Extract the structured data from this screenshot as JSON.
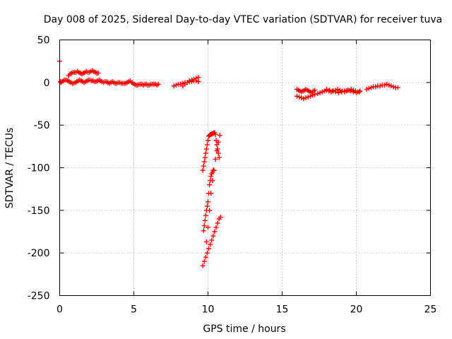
{
  "chart_data": {
    "type": "scatter",
    "title": "Day 008 of 2025, Sidereal Day-to-day VTEC variation (SDTVAR) for receiver tuva",
    "xlabel": "GPS time / hours",
    "ylabel": "SDTVAR / TECUs",
    "xlim": [
      0,
      25
    ],
    "ylim": [
      -250,
      50
    ],
    "xticks": [
      0,
      5,
      10,
      15,
      20,
      25
    ],
    "yticks": [
      50,
      0,
      -50,
      -100,
      -150,
      -200,
      -250
    ],
    "grid": true,
    "marker": "plus",
    "color": "#ff0000",
    "x": [
      0.0,
      0.08,
      0.15,
      0.25,
      0.35,
      0.45,
      0.55,
      0.65,
      0.75,
      0.85,
      0.95,
      1.05,
      1.15,
      1.25,
      1.35,
      1.45,
      1.55,
      1.65,
      1.75,
      1.85,
      1.95,
      2.05,
      2.15,
      2.25,
      2.35,
      2.45,
      2.55,
      2.65,
      2.75,
      2.85,
      2.95,
      3.05,
      3.15,
      3.25,
      3.35,
      3.45,
      3.55,
      3.65,
      3.75,
      3.85,
      3.95,
      4.05,
      4.15,
      4.25,
      4.35,
      4.45,
      4.55,
      4.65,
      4.75,
      4.85,
      4.95,
      5.05,
      5.15,
      5.25,
      5.35,
      5.45,
      5.55,
      5.65,
      5.75,
      5.85,
      5.95,
      6.05,
      6.15,
      6.25,
      6.35,
      6.45,
      6.55,
      6.65,
      0.6,
      0.7,
      0.8,
      0.9,
      1.0,
      1.1,
      1.2,
      1.3,
      1.4,
      1.5,
      1.6,
      1.7,
      1.8,
      1.9,
      2.0,
      2.1,
      2.2,
      2.3,
      2.4,
      2.5,
      2.6,
      0.05,
      7.7,
      7.85,
      8.0,
      8.15,
      8.3,
      8.45,
      8.6,
      8.75,
      8.9,
      9.05,
      9.2,
      9.35,
      8.3,
      8.45,
      8.6,
      8.75,
      8.9,
      9.05,
      9.2,
      9.35,
      9.65,
      9.7,
      9.75,
      9.8,
      9.85,
      9.9,
      9.95,
      10.0,
      10.05,
      10.1,
      10.15,
      10.2,
      10.25,
      10.3,
      10.35,
      10.4,
      10.45,
      10.5,
      10.55,
      10.6,
      10.65,
      10.7,
      10.75,
      9.9,
      10.0,
      10.1,
      10.2,
      10.3,
      10.4,
      10.5,
      10.6,
      10.7,
      10.8,
      9.7,
      9.75,
      9.8,
      9.85,
      9.9,
      9.95,
      10.0,
      10.05,
      10.1,
      10.15,
      10.2,
      10.25,
      10.3,
      10.35,
      10.4,
      9.65,
      9.75,
      9.85,
      9.95,
      10.05,
      10.15,
      10.25,
      10.35,
      10.45,
      10.55,
      10.65,
      10.75,
      10.85,
      16.0,
      16.1,
      16.2,
      16.3,
      16.4,
      16.5,
      16.6,
      16.7,
      16.8,
      16.9,
      17.0,
      17.1,
      17.2,
      16.0,
      16.15,
      16.3,
      16.45,
      16.6,
      16.75,
      16.9,
      17.05,
      17.2,
      17.4,
      17.55,
      17.7,
      17.85,
      18.0,
      18.15,
      18.3,
      18.45,
      18.6,
      18.75,
      18.9,
      19.05,
      19.2,
      19.35,
      19.5,
      19.65,
      19.8,
      19.95,
      20.1,
      20.25,
      18.0,
      18.2,
      18.4,
      18.6,
      18.8,
      19.0,
      19.2,
      19.4,
      19.6,
      19.8,
      20.0,
      20.2,
      20.7,
      20.85,
      21.0,
      21.15,
      21.3,
      21.45,
      21.6,
      21.75,
      21.9,
      22.05,
      22.2,
      22.35,
      22.5,
      22.65,
      22.8
    ],
    "y": [
      25,
      0,
      1,
      2,
      3,
      3,
      2,
      1,
      0,
      -1,
      -1,
      0,
      1,
      2,
      3,
      2,
      1,
      0,
      1,
      2,
      3,
      3,
      2,
      2,
      1,
      1,
      2,
      3,
      2,
      1,
      0,
      1,
      1,
      0,
      -1,
      0,
      1,
      0,
      -1,
      -1,
      0,
      0,
      -1,
      -1,
      -1,
      -1,
      0,
      1,
      2,
      0,
      -1,
      -2,
      -3,
      -3,
      -2,
      -2,
      -2,
      -3,
      -2,
      -2,
      -3,
      -3,
      -2,
      -2,
      -2,
      -2,
      -3,
      -2,
      8,
      10,
      11,
      12,
      12,
      12,
      13,
      12,
      11,
      10,
      11,
      12,
      13,
      12,
      12,
      13,
      14,
      13,
      12,
      11,
      11,
      1,
      -4,
      -3,
      -2,
      -2,
      -1,
      0,
      0,
      1,
      1,
      2,
      2,
      1,
      -4,
      -2,
      0,
      2,
      3,
      4,
      5,
      6,
      -103,
      -98,
      -93,
      -88,
      -83,
      -78,
      -73,
      -68,
      -63,
      -62,
      -61,
      -61,
      -60,
      -60,
      -60,
      -59,
      -59,
      -61,
      -68,
      -73,
      -78,
      -83,
      -88,
      -187,
      -170,
      -150,
      -130,
      -115,
      -103,
      -90,
      -80,
      -70,
      -62,
      -174,
      -168,
      -162,
      -156,
      -150,
      -145,
      -140,
      -130,
      -120,
      -115,
      -110,
      -107,
      -105,
      -103,
      -103,
      -215,
      -210,
      -205,
      -200,
      -195,
      -190,
      -185,
      -180,
      -175,
      -170,
      -165,
      -160,
      -158,
      -8,
      -9,
      -10,
      -11,
      -10,
      -9,
      -8,
      -9,
      -10,
      -11,
      -12,
      -10,
      -9,
      -16,
      -17,
      -18,
      -19,
      -18,
      -17,
      -16,
      -15,
      -14,
      -13,
      -12,
      -11,
      -10,
      -9,
      -10,
      -11,
      -10,
      -9,
      -8,
      -9,
      -10,
      -11,
      -10,
      -9,
      -8,
      -9,
      -10,
      -11,
      -10,
      -8,
      -9,
      -10,
      -11,
      -12,
      -11,
      -10,
      -9,
      -10,
      -11,
      -12,
      -11,
      -8,
      -7,
      -6,
      -5,
      -5,
      -4,
      -4,
      -3,
      -3,
      -2,
      -3,
      -4,
      -5,
      -6,
      -6
    ]
  }
}
